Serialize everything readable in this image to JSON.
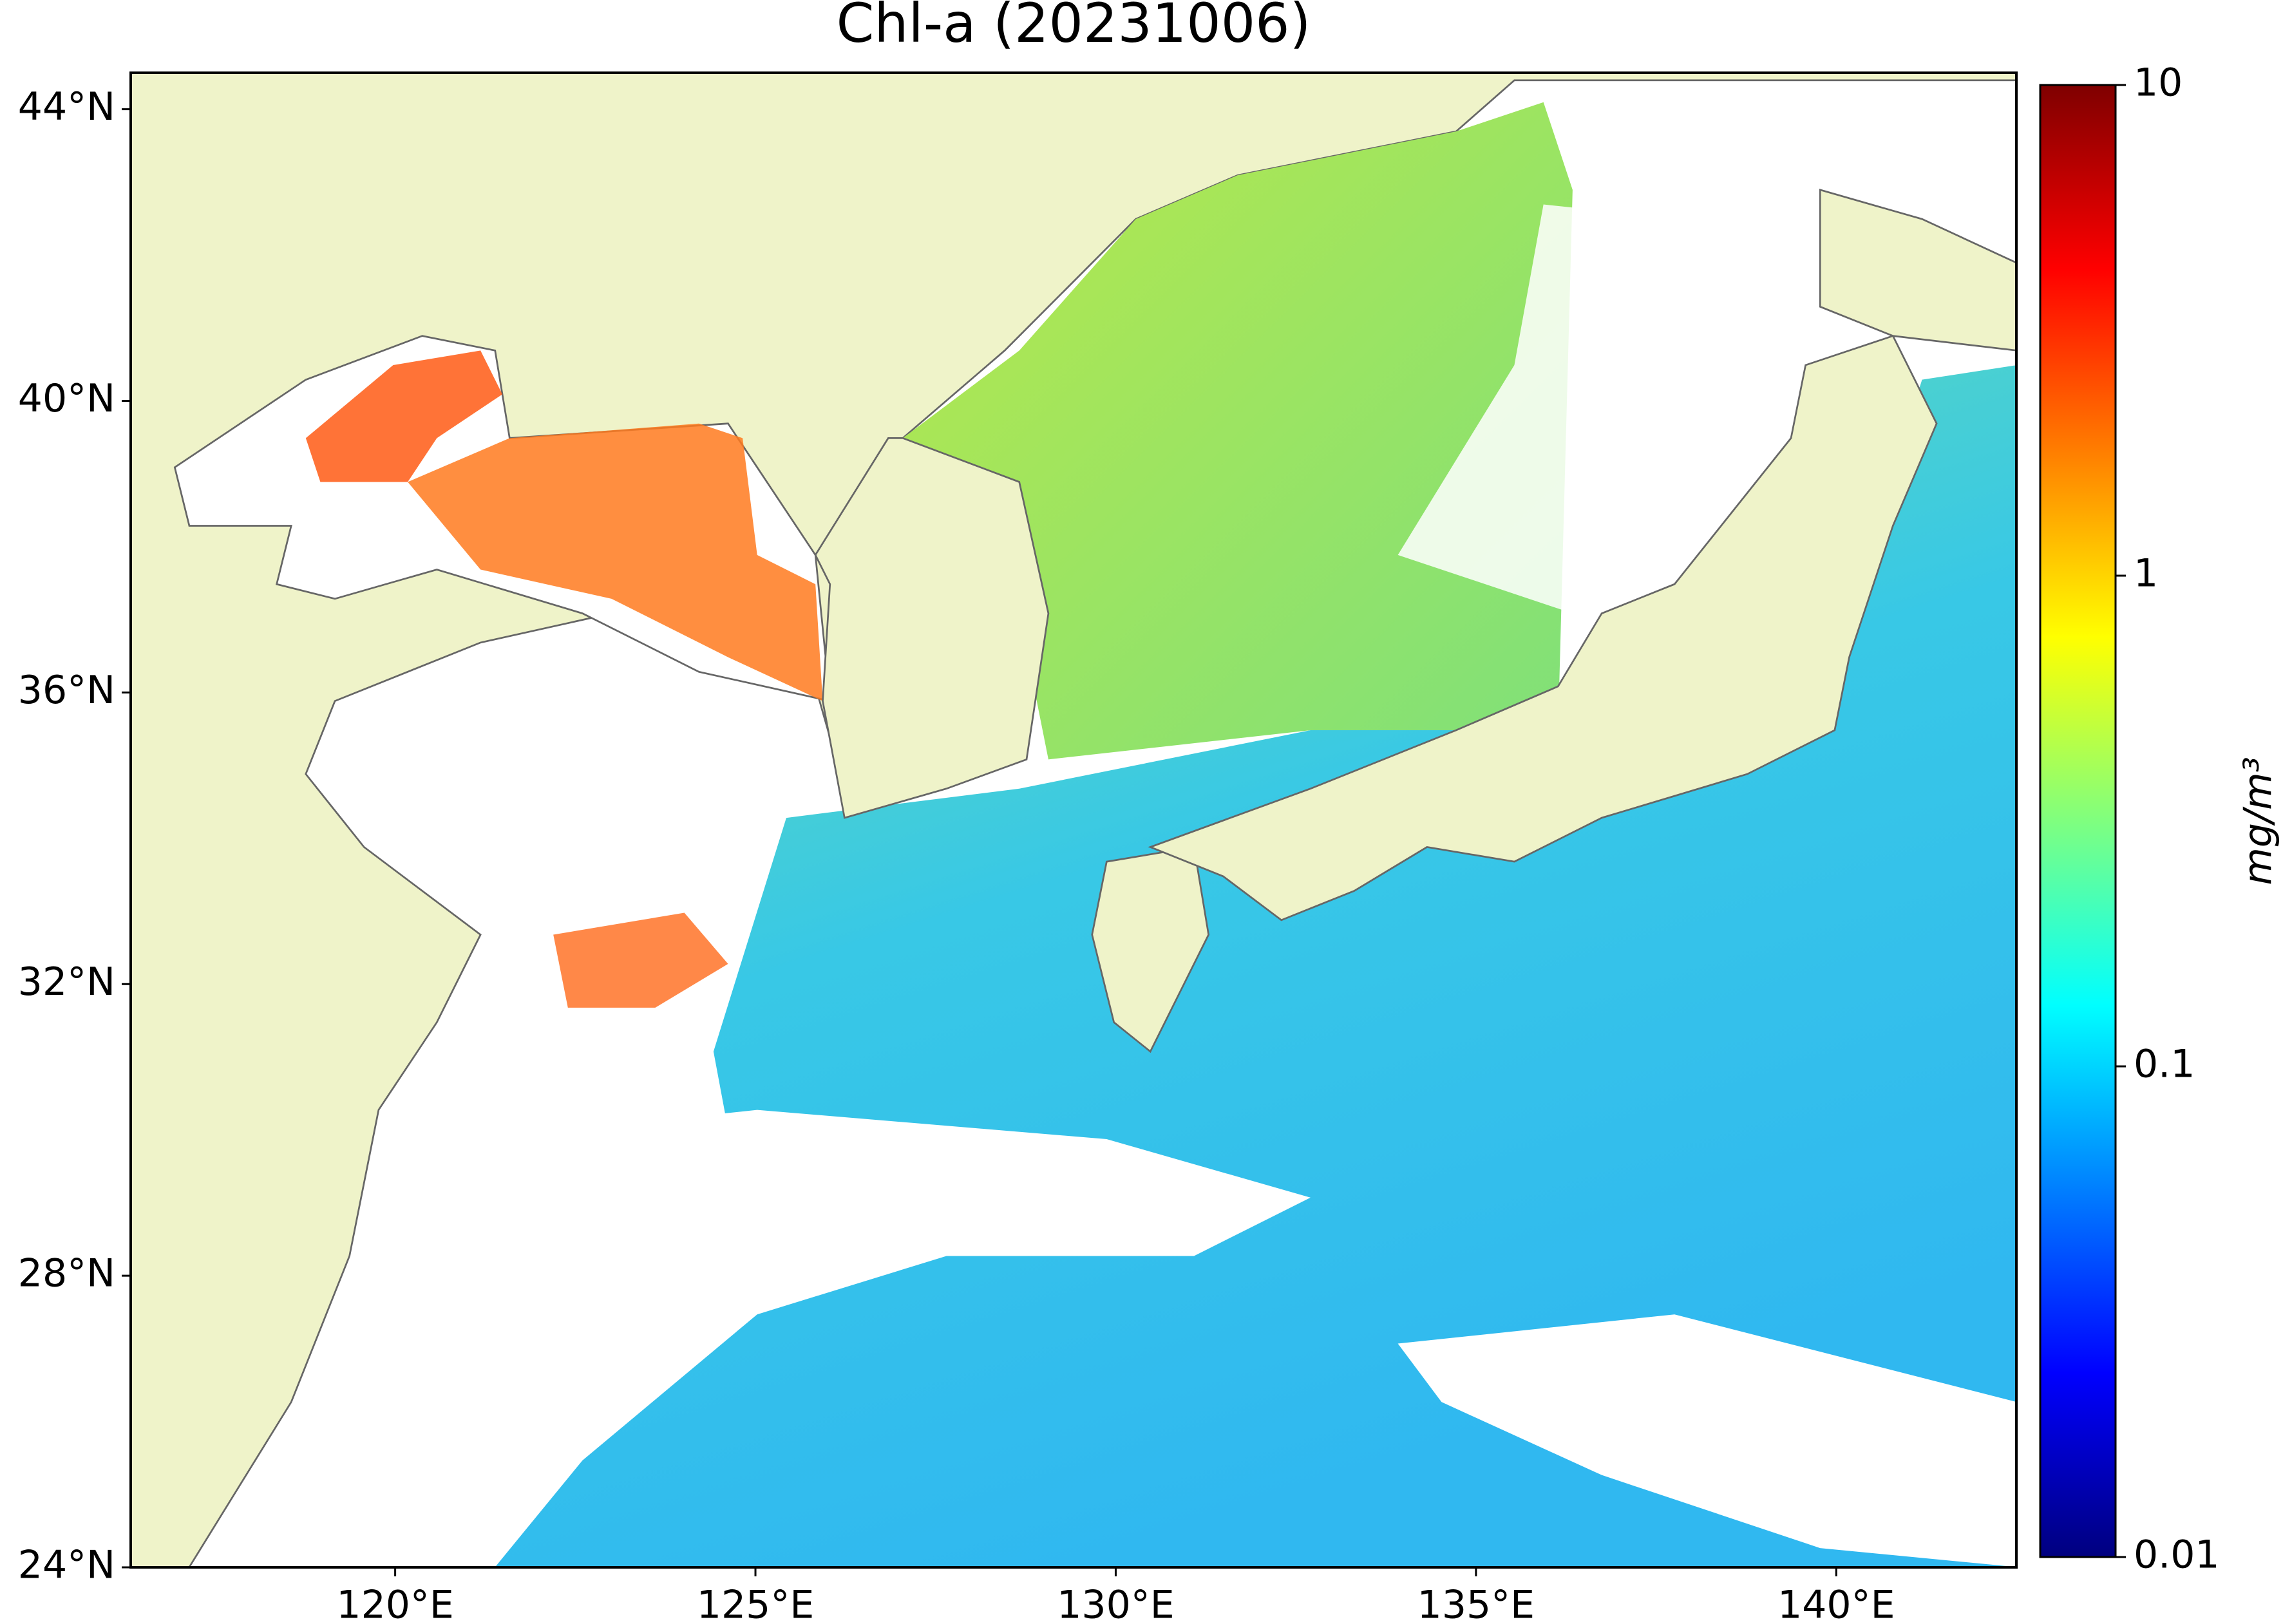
{
  "map": {
    "title": "Chl-a (20231006)",
    "xlim": [
      116.33,
      142.5
    ],
    "ylim": [
      24,
      44.5
    ],
    "xticks": [
      {
        "value": 120,
        "label": "120°E"
      },
      {
        "value": 125,
        "label": "125°E"
      },
      {
        "value": 130,
        "label": "130°E"
      },
      {
        "value": 135,
        "label": "135°E"
      },
      {
        "value": 140,
        "label": "140°E"
      }
    ],
    "yticks": [
      {
        "value": 24,
        "label": "24°N"
      },
      {
        "value": 28,
        "label": "28°N"
      },
      {
        "value": 32,
        "label": "32°N"
      },
      {
        "value": 36,
        "label": "36°N"
      },
      {
        "value": 40,
        "label": "40°N"
      },
      {
        "value": 44,
        "label": "44°N"
      }
    ],
    "colorbar": {
      "label": "mg/m³",
      "scale": "log",
      "lim": [
        0.01,
        10
      ],
      "ticks": [
        0.01,
        0.1,
        1,
        10
      ],
      "colormap": "jet"
    }
  }
}
